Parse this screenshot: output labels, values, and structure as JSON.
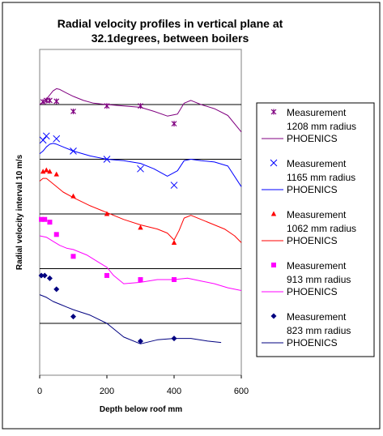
{
  "chart_data": {
    "type": "line",
    "title": "Radial velocity profiles in vertical plane at 32.1degrees, between boilers",
    "title_lines": [
      "Radial velocity profiles in vertical plane at",
      "32.1degrees, between boilers"
    ],
    "xlabel": "Depth below roof   mm",
    "ylabel": "Radial velocity   interval 10 m/s",
    "xlim": [
      0,
      600
    ],
    "x_ticks": [
      "0",
      "200",
      "400",
      "600"
    ],
    "x_tick_values": [
      0,
      200,
      400,
      600
    ],
    "ylim": [
      0,
      10
    ],
    "grid": true,
    "legend_position": "right",
    "series": [
      {
        "radius": "1208 mm radius",
        "color": "#800080",
        "baseline": 8,
        "marker": "asterisk",
        "measurement_label": "Measurement",
        "model_label": "PHOENICS",
        "measured": [
          [
            10,
            8.1
          ],
          [
            20,
            8.15
          ],
          [
            30,
            8.15
          ],
          [
            50,
            8.12
          ],
          [
            100,
            7.75
          ],
          [
            200,
            7.95
          ],
          [
            300,
            7.95
          ],
          [
            400,
            7.3
          ]
        ],
        "model": [
          [
            0,
            8.0
          ],
          [
            10,
            8.1
          ],
          [
            20,
            8.2
          ],
          [
            30,
            8.35
          ],
          [
            40,
            8.5
          ],
          [
            50,
            8.58
          ],
          [
            60,
            8.55
          ],
          [
            80,
            8.42
          ],
          [
            100,
            8.3
          ],
          [
            130,
            8.15
          ],
          [
            160,
            8.05
          ],
          [
            200,
            8.0
          ],
          [
            250,
            7.95
          ],
          [
            300,
            7.9
          ],
          [
            340,
            7.75
          ],
          [
            380,
            7.58
          ],
          [
            410,
            7.65
          ],
          [
            430,
            8.05
          ],
          [
            450,
            8.15
          ],
          [
            480,
            8.0
          ],
          [
            520,
            7.85
          ],
          [
            560,
            7.6
          ],
          [
            600,
            7.0
          ]
        ]
      },
      {
        "radius": "1165 mm radius",
        "color": "#0000ff",
        "baseline": 6,
        "marker": "x",
        "measurement_label": "Measurement",
        "model_label": "PHOENICS",
        "measured": [
          [
            10,
            6.7
          ],
          [
            20,
            6.85
          ],
          [
            50,
            6.75
          ],
          [
            100,
            6.3
          ],
          [
            200,
            6.0
          ],
          [
            300,
            5.65
          ],
          [
            400,
            5.05
          ]
        ],
        "model": [
          [
            0,
            6.2
          ],
          [
            10,
            6.3
          ],
          [
            20,
            6.45
          ],
          [
            30,
            6.55
          ],
          [
            40,
            6.58
          ],
          [
            50,
            6.55
          ],
          [
            70,
            6.45
          ],
          [
            100,
            6.3
          ],
          [
            150,
            6.12
          ],
          [
            200,
            6.0
          ],
          [
            250,
            5.95
          ],
          [
            300,
            5.85
          ],
          [
            340,
            5.65
          ],
          [
            380,
            5.38
          ],
          [
            410,
            5.58
          ],
          [
            430,
            5.95
          ],
          [
            450,
            6.0
          ],
          [
            480,
            5.95
          ],
          [
            520,
            5.9
          ],
          [
            560,
            5.75
          ],
          [
            600,
            5.0
          ]
        ]
      },
      {
        "radius": "1062 mm radius",
        "color": "#ff0000",
        "baseline": 4,
        "marker": "triangle",
        "measurement_label": "Measurement",
        "model_label": "PHOENICS",
        "measured": [
          [
            10,
            5.55
          ],
          [
            20,
            5.6
          ],
          [
            30,
            5.55
          ],
          [
            50,
            5.45
          ],
          [
            100,
            4.65
          ],
          [
            200,
            4.0
          ],
          [
            300,
            3.5
          ],
          [
            400,
            2.95
          ]
        ],
        "model": [
          [
            0,
            5.2
          ],
          [
            10,
            5.3
          ],
          [
            20,
            5.3
          ],
          [
            30,
            5.2
          ],
          [
            50,
            5.0
          ],
          [
            70,
            4.8
          ],
          [
            100,
            4.6
          ],
          [
            150,
            4.3
          ],
          [
            200,
            4.05
          ],
          [
            250,
            3.8
          ],
          [
            300,
            3.6
          ],
          [
            350,
            3.45
          ],
          [
            380,
            3.3
          ],
          [
            400,
            3.05
          ],
          [
            415,
            3.4
          ],
          [
            430,
            3.85
          ],
          [
            450,
            3.95
          ],
          [
            500,
            3.7
          ],
          [
            550,
            3.45
          ],
          [
            580,
            3.2
          ],
          [
            600,
            2.95
          ]
        ]
      },
      {
        "radius": "913 mm radius",
        "color": "#ff00ff",
        "baseline": 2,
        "marker": "square",
        "measurement_label": "Measurement",
        "model_label": "PHOENICS",
        "measured": [
          [
            5,
            3.8
          ],
          [
            15,
            3.8
          ],
          [
            30,
            3.7
          ],
          [
            50,
            3.25
          ],
          [
            100,
            2.45
          ],
          [
            200,
            1.75
          ],
          [
            300,
            1.6
          ],
          [
            400,
            1.6
          ]
        ],
        "model": [
          [
            0,
            3.2
          ],
          [
            20,
            3.15
          ],
          [
            40,
            3.0
          ],
          [
            60,
            2.85
          ],
          [
            80,
            2.75
          ],
          [
            100,
            2.7
          ],
          [
            140,
            2.5
          ],
          [
            180,
            2.2
          ],
          [
            200,
            2.05
          ],
          [
            220,
            1.75
          ],
          [
            250,
            1.45
          ],
          [
            300,
            1.5
          ],
          [
            350,
            1.6
          ],
          [
            400,
            1.6
          ],
          [
            440,
            1.65
          ],
          [
            480,
            1.55
          ],
          [
            520,
            1.45
          ],
          [
            560,
            1.3
          ],
          [
            600,
            1.2
          ]
        ]
      },
      {
        "radius": "823 mm radius",
        "color": "#000080",
        "baseline": 0,
        "marker": "diamond",
        "measurement_label": "Measurement",
        "model_label": "PHOENICS",
        "measured": [
          [
            5,
            1.75
          ],
          [
            15,
            1.75
          ],
          [
            30,
            1.65
          ],
          [
            50,
            1.25
          ],
          [
            100,
            0.25
          ],
          [
            300,
            -0.65
          ],
          [
            400,
            -0.55
          ]
        ],
        "model": [
          [
            0,
            1.05
          ],
          [
            20,
            0.95
          ],
          [
            40,
            0.8
          ],
          [
            60,
            0.7
          ],
          [
            80,
            0.6
          ],
          [
            100,
            0.5
          ],
          [
            150,
            0.3
          ],
          [
            200,
            0.0
          ],
          [
            250,
            -0.5
          ],
          [
            300,
            -0.75
          ],
          [
            350,
            -0.6
          ],
          [
            400,
            -0.55
          ],
          [
            450,
            -0.55
          ],
          [
            500,
            -0.65
          ],
          [
            540,
            -0.7
          ]
        ]
      }
    ]
  }
}
